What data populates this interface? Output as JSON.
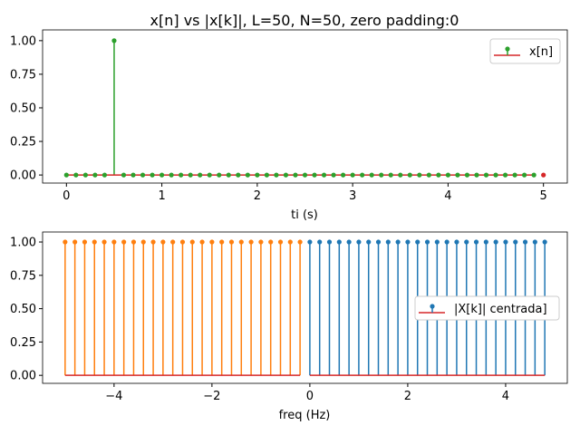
{
  "chart_data": [
    {
      "type": "stem",
      "title": "x[n] vs |x[k]|, L=50, N=50, zero padding:0",
      "xlabel": "ti (s)",
      "ylabel": "",
      "xlim": [
        -0.25,
        5.25
      ],
      "ylim": [
        -0.06,
        1.08
      ],
      "xticks": [
        "0",
        "1",
        "2",
        "3",
        "4",
        "5"
      ],
      "xtick_values": [
        0,
        1,
        2,
        3,
        4,
        5
      ],
      "yticks": [
        "0.00",
        "0.25",
        "0.50",
        "0.75",
        "1.00"
      ],
      "ytick_values": [
        0,
        0.25,
        0.5,
        0.75,
        1.0
      ],
      "legend": {
        "position": "upper-right",
        "entries": [
          "x[n]"
        ]
      },
      "series": [
        {
          "name": "x[n]",
          "color": "#2ca02c",
          "baseline_color": "#d62728",
          "x_start": 0,
          "x_step": 0.1,
          "count": 50,
          "impulse_at": 0.5,
          "impulse_value": 1.0
        }
      ],
      "extra_points": [
        {
          "x": 5,
          "y": 0,
          "color": "#d62728"
        }
      ]
    },
    {
      "type": "stem",
      "title": "",
      "xlabel": "freq (Hz)",
      "ylabel": "",
      "xlim": [
        -5.46,
        5.26
      ],
      "ylim": [
        -0.06,
        1.075
      ],
      "xticks": [
        "−4",
        "−2",
        "0",
        "2",
        "4"
      ],
      "xtick_values": [
        -4,
        -2,
        0,
        2,
        4
      ],
      "yticks": [
        "0.00",
        "0.25",
        "0.50",
        "0.75",
        "1.00"
      ],
      "ytick_values": [
        0,
        0.25,
        0.5,
        0.75,
        1.0
      ],
      "legend": {
        "position": "center-right",
        "entries": [
          "|X[k]| centrada]"
        ]
      },
      "series": [
        {
          "name": "negative",
          "color": "#ff7f0e",
          "baseline_color": "#d62728",
          "x_start": -5.0,
          "x_step": 0.2,
          "count": 25,
          "value": 1.0
        },
        {
          "name": "|X[k]| centrada]",
          "color": "#1f77b4",
          "baseline_color": "#d62728",
          "x_start": 0.0,
          "x_step": 0.2,
          "count": 25,
          "value": 1.0
        }
      ]
    }
  ]
}
